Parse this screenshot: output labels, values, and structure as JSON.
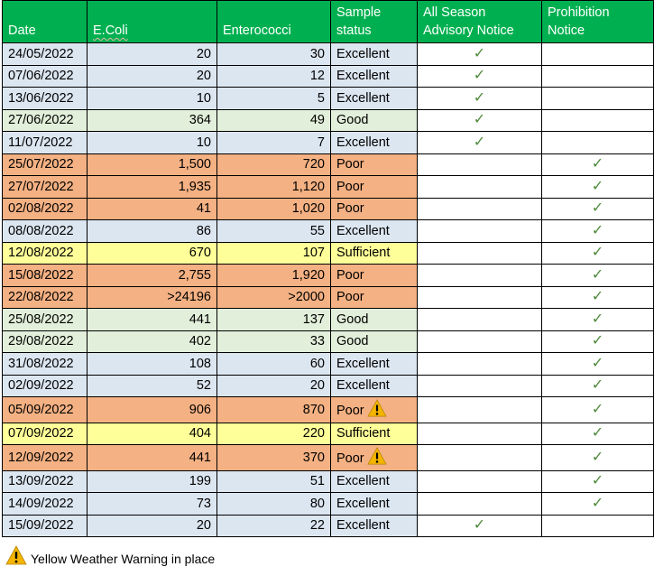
{
  "table": {
    "headers": {
      "date": "Date",
      "ecoli": "E.Coli",
      "entero": "Enterococci",
      "status": "Sample status",
      "advisory": "All Season Advisory Notice",
      "prohibition": "Prohibition Notice"
    },
    "check_glyph": "✓",
    "rows": [
      {
        "date": "24/05/2022",
        "ecoli": "20",
        "entero": "30",
        "status": "Excellent",
        "status_class": "excellent",
        "warning": false,
        "advisory": true,
        "prohibition": false
      },
      {
        "date": "07/06/2022",
        "ecoli": "20",
        "entero": "12",
        "status": "Excellent",
        "status_class": "excellent",
        "warning": false,
        "advisory": true,
        "prohibition": false
      },
      {
        "date": "13/06/2022",
        "ecoli": "10",
        "entero": "5",
        "status": "Excellent",
        "status_class": "excellent",
        "warning": false,
        "advisory": true,
        "prohibition": false
      },
      {
        "date": "27/06/2022",
        "ecoli": "364",
        "entero": "49",
        "status": "Good",
        "status_class": "good",
        "warning": false,
        "advisory": true,
        "prohibition": false
      },
      {
        "date": "11/07/2022",
        "ecoli": "10",
        "entero": "7",
        "status": "Excellent",
        "status_class": "excellent",
        "warning": false,
        "advisory": true,
        "prohibition": false
      },
      {
        "date": "25/07/2022",
        "ecoli": "1,500",
        "entero": "720",
        "status": "Poor",
        "status_class": "poor",
        "warning": false,
        "advisory": false,
        "prohibition": true
      },
      {
        "date": "27/07/2022",
        "ecoli": "1,935",
        "entero": "1,120",
        "status": "Poor",
        "status_class": "poor",
        "warning": false,
        "advisory": false,
        "prohibition": true
      },
      {
        "date": "02/08/2022",
        "ecoli": "41",
        "entero": "1,020",
        "status": "Poor",
        "status_class": "poor",
        "warning": false,
        "advisory": false,
        "prohibition": true
      },
      {
        "date": "08/08/2022",
        "ecoli": "86",
        "entero": "55",
        "status": "Excellent",
        "status_class": "excellent",
        "warning": false,
        "advisory": false,
        "prohibition": true
      },
      {
        "date": "12/08/2022",
        "ecoli": "670",
        "entero": "107",
        "status": "Sufficient",
        "status_class": "sufficient",
        "warning": false,
        "advisory": false,
        "prohibition": true
      },
      {
        "date": "15/08/2022",
        "ecoli": "2,755",
        "entero": "1,920",
        "status": "Poor",
        "status_class": "poor",
        "warning": false,
        "advisory": false,
        "prohibition": true
      },
      {
        "date": "22/08/2022",
        "ecoli": ">24196",
        "entero": ">2000",
        "status": "Poor",
        "status_class": "poor",
        "warning": false,
        "advisory": false,
        "prohibition": true
      },
      {
        "date": "25/08/2022",
        "ecoli": "441",
        "entero": "137",
        "status": "Good",
        "status_class": "good",
        "warning": false,
        "advisory": false,
        "prohibition": true
      },
      {
        "date": "29/08/2022",
        "ecoli": "402",
        "entero": "33",
        "status": "Good",
        "status_class": "good",
        "warning": false,
        "advisory": false,
        "prohibition": true
      },
      {
        "date": "31/08/2022",
        "ecoli": "108",
        "entero": "60",
        "status": "Excellent",
        "status_class": "excellent",
        "warning": false,
        "advisory": false,
        "prohibition": true
      },
      {
        "date": "02/09/2022",
        "ecoli": "52",
        "entero": "20",
        "status": "Excellent",
        "status_class": "excellent",
        "warning": false,
        "advisory": false,
        "prohibition": true
      },
      {
        "date": "05/09/2022",
        "ecoli": "906",
        "entero": "870",
        "status": "Poor",
        "status_class": "poor",
        "warning": true,
        "advisory": false,
        "prohibition": true
      },
      {
        "date": "07/09/2022",
        "ecoli": "404",
        "entero": "220",
        "status": "Sufficient",
        "status_class": "sufficient",
        "warning": false,
        "advisory": false,
        "prohibition": true
      },
      {
        "date": "12/09/2022",
        "ecoli": "441",
        "entero": "370",
        "status": "Poor",
        "status_class": "poor",
        "warning": true,
        "advisory": false,
        "prohibition": true
      },
      {
        "date": "13/09/2022",
        "ecoli": "199",
        "entero": "51",
        "status": "Excellent",
        "status_class": "excellent",
        "warning": false,
        "advisory": false,
        "prohibition": true
      },
      {
        "date": "14/09/2022",
        "ecoli": "73",
        "entero": "80",
        "status": "Excellent",
        "status_class": "excellent",
        "warning": false,
        "advisory": false,
        "prohibition": true
      },
      {
        "date": "15/09/2022",
        "ecoli": "20",
        "entero": "22",
        "status": "Excellent",
        "status_class": "excellent",
        "warning": false,
        "advisory": true,
        "prohibition": false
      }
    ]
  },
  "legend": {
    "text": "Yellow Weather Warning in place",
    "icon": "warning-icon"
  },
  "colors": {
    "header": "#00b050",
    "excellent": "#dce6f1",
    "good": "#e2efda",
    "poor": "#f4b183",
    "sufficient": "#ffff99",
    "check": "#4e8a3c",
    "warning": "#f4b400"
  }
}
